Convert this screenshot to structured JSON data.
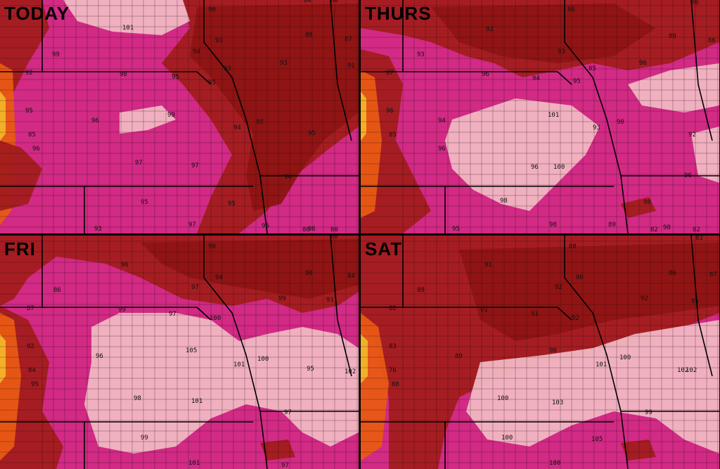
{
  "colors": {
    "pink_hot": "#d22a85",
    "pink_light": "#f1b7c3",
    "maroon": "#a21c1c",
    "maroon_dark": "#8e1414",
    "red": "#c3211c",
    "orange": "#e85a14",
    "yellow": "#f4b42a",
    "border": "#1a0a0a"
  },
  "panels": [
    {
      "label": "TODAY",
      "values": [
        "90",
        "84",
        "86",
        "101",
        "88",
        "87",
        "99",
        "94",
        "91",
        "92",
        "93",
        "93",
        "98",
        "95",
        "95",
        "91",
        "95",
        "99",
        "94",
        "95",
        "95",
        "85",
        "96",
        "96",
        "97",
        "97",
        "94",
        "95",
        "95",
        "93",
        "97",
        "96",
        "96",
        "80",
        "80"
      ]
    },
    {
      "label": "THURS",
      "values": [
        "86",
        "86",
        "85",
        "92",
        "89",
        "86",
        "93",
        "93",
        "87",
        "96",
        "94",
        "95",
        "96",
        "96",
        "94",
        "101",
        "93",
        "90",
        "92",
        "85",
        "96",
        "96",
        "98",
        "100",
        "96",
        "98",
        "95",
        "89",
        "98",
        "98",
        "82",
        "82"
      ]
    },
    {
      "label": "FRI",
      "values": [
        "90",
        "80",
        "96",
        "90",
        "84",
        "86",
        "97",
        "94",
        "87",
        "99",
        "97",
        "100",
        "99",
        "91",
        "92",
        "105",
        "96",
        "101",
        "100",
        "95",
        "84",
        "102",
        "101",
        "97",
        "95",
        "99",
        "98",
        "97",
        "101"
      ]
    },
    {
      "label": "SAT",
      "values": [
        "88",
        "83",
        "91",
        "86",
        "87",
        "89",
        "80",
        "92",
        "82",
        "91",
        "91",
        "92",
        "92",
        "95",
        "83",
        "89",
        "98",
        "100",
        "101",
        "76",
        "88",
        "102",
        "100",
        "103",
        "99",
        "100",
        "105",
        "102",
        "100"
      ]
    }
  ]
}
